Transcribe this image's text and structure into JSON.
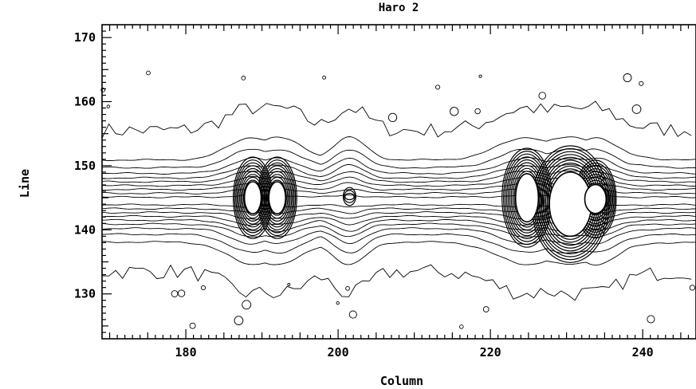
{
  "chart_data": {
    "type": "contour",
    "title": "Haro 2",
    "xlabel": "Column",
    "ylabel": "Line",
    "xlim": [
      169,
      247
    ],
    "ylim": [
      123,
      172
    ],
    "x_ticks": [
      180,
      200,
      220,
      240
    ],
    "y_ticks": [
      130,
      140,
      150,
      160,
      170
    ],
    "band": {
      "center_line": 144.5,
      "contour_offsets": [
        -0.6,
        0.6,
        -1.2,
        1.2,
        -1.8,
        1.8,
        -2.4,
        2.4,
        -3.0,
        3.0,
        -3.6,
        3.6,
        -4.3,
        4.3,
        -5.2,
        5.2,
        -6.4,
        6.4
      ]
    },
    "peaks": [
      {
        "column": 188.8,
        "line": 145.0,
        "saturated_width": 2.2,
        "saturated_height": 5.0,
        "contour_radius_cols": 3.0
      },
      {
        "column": 192.0,
        "line": 145.0,
        "saturated_width": 2.2,
        "saturated_height": 5.0,
        "contour_radius_cols": 3.0
      },
      {
        "column": 201.5,
        "line": 145.2,
        "saturated_width": 0,
        "saturated_height": 0,
        "contour_radius_cols": 2.0
      },
      {
        "column": 224.8,
        "line": 145.0,
        "saturated_width": 3.0,
        "saturated_height": 7.5,
        "contour_radius_cols": 3.6
      },
      {
        "column": 230.5,
        "line": 144.0,
        "saturated_width": 5.5,
        "saturated_height": 10.0,
        "contour_radius_cols": 4.5
      },
      {
        "column": 233.8,
        "line": 144.8,
        "saturated_width": 2.8,
        "saturated_height": 4.5,
        "contour_radius_cols": 2.6
      }
    ],
    "outer_contour_levels": [
      155.5,
      133.5
    ],
    "grid": false,
    "legend": "none"
  }
}
